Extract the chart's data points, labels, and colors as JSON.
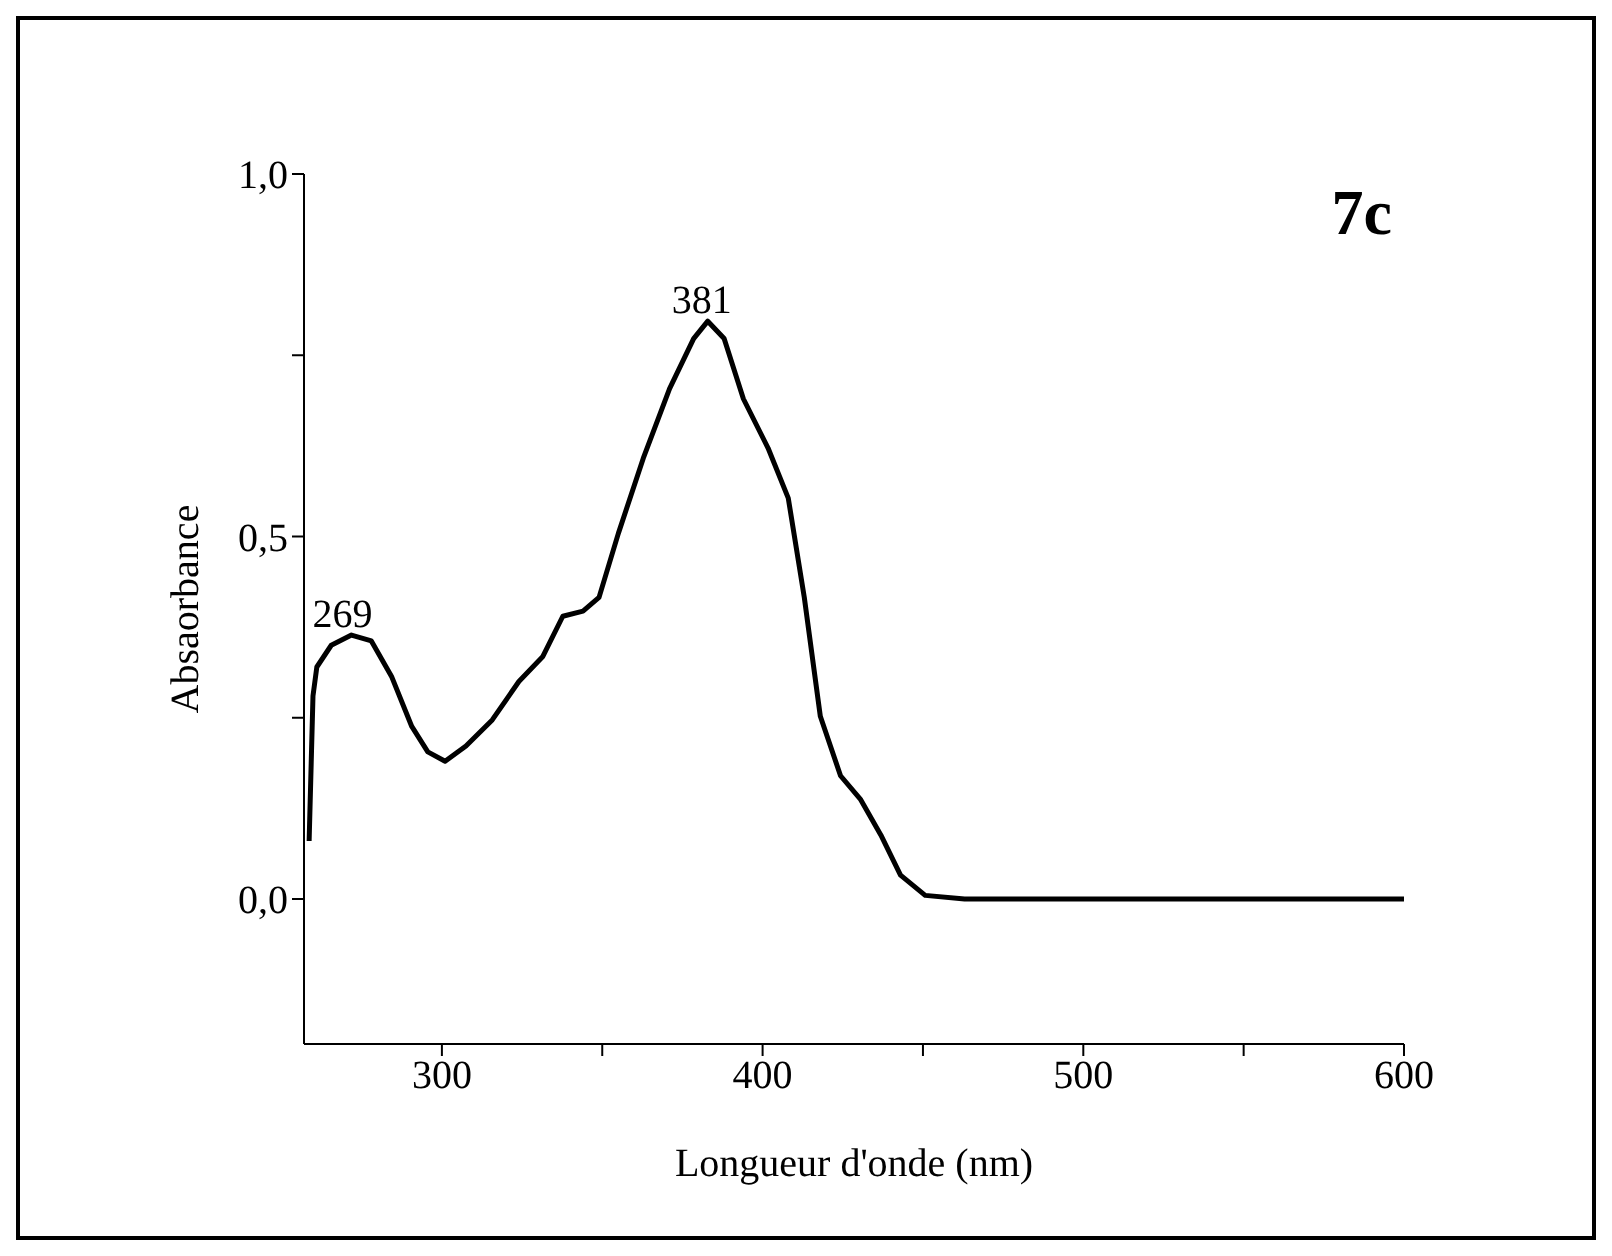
{
  "chart_data": {
    "type": "line",
    "xlabel": "Longueur d'onde (nm)",
    "ylabel": "Absaorbance",
    "annotations": [
      {
        "text": "269",
        "x": 269,
        "y": 0.364
      },
      {
        "text": "381",
        "x": 381,
        "y": 0.797
      },
      "7c"
    ],
    "xlim": [
      257,
      600
    ],
    "xticks": [
      300,
      {
        "value": 350,
        "label": null
      },
      400,
      {
        "value": 450,
        "label": null
      },
      500,
      {
        "value": 550,
        "label": null
      },
      600
    ],
    "ylim": [
      -0.2,
      1.0
    ],
    "yticks": [
      {
        "value": 0,
        "label": "0,0"
      },
      {
        "value": 0.25,
        "label": null
      },
      {
        "value": 0.5,
        "label": "0,5"
      },
      {
        "value": 0.75,
        "label": null
      },
      {
        "value": 1.0,
        "label": "1,0"
      }
    ],
    "grid": false,
    "legend": false,
    "marker": "none",
    "line_style": "solid",
    "series": [
      {
        "color": "#000000",
        "x": [
          258.6,
          259.8,
          261,
          265.5,
          271.8,
          278,
          284.3,
          290.6,
          295.6,
          301,
          307.5,
          315.7,
          324,
          331.4,
          337.7,
          344,
          349,
          355,
          362.8,
          371,
          378.5,
          382.9,
          388,
          394,
          401.7,
          408,
          413,
          418,
          424.3,
          430.6,
          436.9,
          443,
          450.7,
          463,
          480,
          500,
          520,
          540,
          560,
          580,
          600
        ],
        "values": [
          0.08,
          0.28,
          0.32,
          0.35,
          0.364,
          0.356,
          0.307,
          0.238,
          0.203,
          0.19,
          0.211,
          0.247,
          0.3,
          0.334,
          0.39,
          0.397,
          0.416,
          0.504,
          0.608,
          0.704,
          0.773,
          0.797,
          0.773,
          0.69,
          0.622,
          0.553,
          0.416,
          0.252,
          0.17,
          0.137,
          0.088,
          0.033,
          0.005,
          0,
          0,
          0,
          0,
          0,
          0,
          0,
          0
        ]
      }
    ]
  }
}
